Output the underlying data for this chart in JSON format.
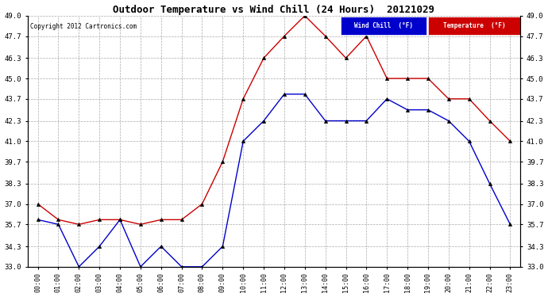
{
  "title": "Outdoor Temperature vs Wind Chill (24 Hours)  20121029",
  "copyright": "Copyright 2012 Cartronics.com",
  "x_labels": [
    "00:00",
    "01:00",
    "02:00",
    "03:00",
    "04:00",
    "05:00",
    "06:00",
    "07:00",
    "08:00",
    "09:00",
    "10:00",
    "11:00",
    "12:00",
    "13:00",
    "14:00",
    "15:00",
    "16:00",
    "17:00",
    "18:00",
    "19:00",
    "20:00",
    "21:00",
    "22:00",
    "23:00"
  ],
  "temperature": [
    37.0,
    36.0,
    35.7,
    36.0,
    36.0,
    35.7,
    36.0,
    36.0,
    37.0,
    39.7,
    43.7,
    46.3,
    47.7,
    49.0,
    47.7,
    46.3,
    47.7,
    45.0,
    45.0,
    45.0,
    43.7,
    43.7,
    42.3,
    41.0
  ],
  "wind_chill": [
    36.0,
    35.7,
    33.0,
    34.3,
    36.0,
    33.0,
    34.3,
    33.0,
    33.0,
    34.3,
    41.0,
    42.3,
    44.0,
    44.0,
    42.3,
    42.3,
    42.3,
    43.7,
    43.0,
    43.0,
    42.3,
    41.0,
    38.3,
    35.7
  ],
  "ylim": [
    33.0,
    49.0
  ],
  "yticks": [
    33.0,
    34.3,
    35.7,
    37.0,
    38.3,
    39.7,
    41.0,
    42.3,
    43.7,
    45.0,
    46.3,
    47.7,
    49.0
  ],
  "temp_color": "#cc0000",
  "wind_color": "#0000cc",
  "bg_color": "#ffffff",
  "grid_color": "#aaaaaa",
  "legend_wind_bg": "#0000cc",
  "legend_temp_bg": "#cc0000"
}
